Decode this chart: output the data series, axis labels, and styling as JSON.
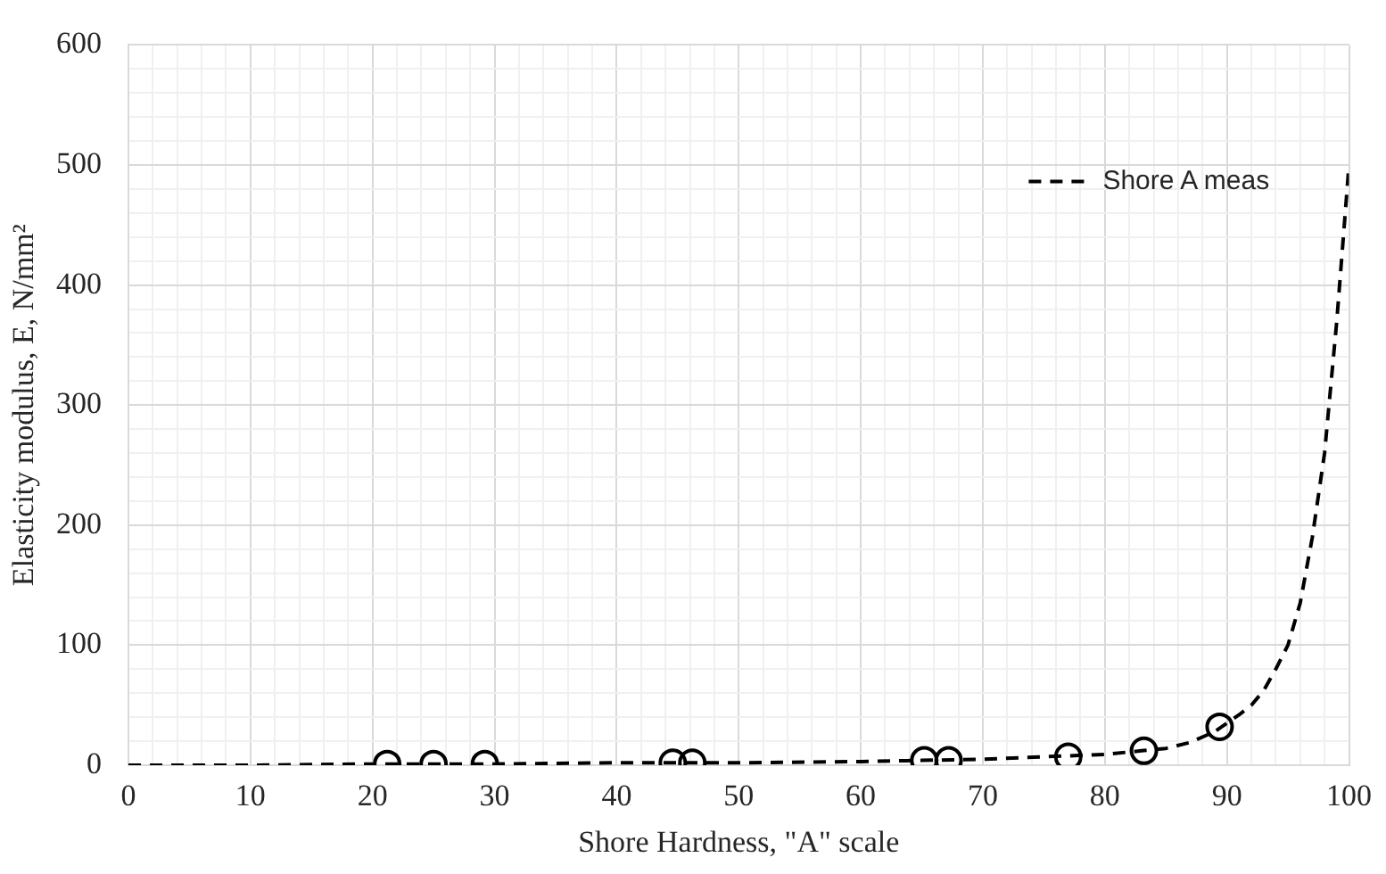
{
  "chart_data": {
    "type": "line",
    "xlabel": "Shore Hardness, \"A\" scale",
    "ylabel": "Elasticity modulus, E, N/mm²",
    "xlim": [
      0,
      100
    ],
    "xticks": [
      0,
      {
        "value": 2,
        "label": null
      },
      {
        "value": 4,
        "label": null
      },
      {
        "value": 6,
        "label": null
      },
      {
        "value": 8,
        "label": null
      },
      10,
      {
        "value": 12,
        "label": null
      },
      {
        "value": 14,
        "label": null
      },
      {
        "value": 16,
        "label": null
      },
      {
        "value": 18,
        "label": null
      },
      20,
      {
        "value": 22,
        "label": null
      },
      {
        "value": 24,
        "label": null
      },
      {
        "value": 26,
        "label": null
      },
      {
        "value": 28,
        "label": null
      },
      30,
      {
        "value": 32,
        "label": null
      },
      {
        "value": 34,
        "label": null
      },
      {
        "value": 36,
        "label": null
      },
      {
        "value": 38,
        "label": null
      },
      40,
      {
        "value": 42,
        "label": null
      },
      {
        "value": 44,
        "label": null
      },
      {
        "value": 46,
        "label": null
      },
      {
        "value": 48,
        "label": null
      },
      50,
      {
        "value": 52,
        "label": null
      },
      {
        "value": 54,
        "label": null
      },
      {
        "value": 56,
        "label": null
      },
      {
        "value": 58,
        "label": null
      },
      60,
      {
        "value": 62,
        "label": null
      },
      {
        "value": 64,
        "label": null
      },
      {
        "value": 66,
        "label": null
      },
      {
        "value": 68,
        "label": null
      },
      70,
      {
        "value": 72,
        "label": null
      },
      {
        "value": 74,
        "label": null
      },
      {
        "value": 76,
        "label": null
      },
      {
        "value": 78,
        "label": null
      },
      80,
      {
        "value": 82,
        "label": null
      },
      {
        "value": 84,
        "label": null
      },
      {
        "value": 86,
        "label": null
      },
      {
        "value": 88,
        "label": null
      },
      90,
      {
        "value": 92,
        "label": null
      },
      {
        "value": 94,
        "label": null
      },
      {
        "value": 96,
        "label": null
      },
      {
        "value": 98,
        "label": null
      },
      100
    ],
    "ylim": [
      0,
      600
    ],
    "yticks": [
      0,
      {
        "value": 20,
        "label": null
      },
      {
        "value": 40,
        "label": null
      },
      {
        "value": 60,
        "label": null
      },
      {
        "value": 80,
        "label": null
      },
      100,
      {
        "value": 120,
        "label": null
      },
      {
        "value": 140,
        "label": null
      },
      {
        "value": 160,
        "label": null
      },
      {
        "value": 180,
        "label": null
      },
      200,
      {
        "value": 220,
        "label": null
      },
      {
        "value": 240,
        "label": null
      },
      {
        "value": 260,
        "label": null
      },
      {
        "value": 280,
        "label": null
      },
      300,
      {
        "value": 320,
        "label": null
      },
      {
        "value": 340,
        "label": null
      },
      {
        "value": 360,
        "label": null
      },
      {
        "value": 380,
        "label": null
      },
      400,
      {
        "value": 420,
        "label": null
      },
      {
        "value": 440,
        "label": null
      },
      {
        "value": 460,
        "label": null
      },
      {
        "value": 480,
        "label": null
      },
      500,
      {
        "value": 520,
        "label": null
      },
      {
        "value": 540,
        "label": null
      },
      {
        "value": 560,
        "label": null
      },
      {
        "value": 580,
        "label": null
      },
      600
    ],
    "grid": true,
    "legend": "top right",
    "series": [
      {
        "name": "Shore A meas",
        "color": "#000000",
        "line_style": "dashed",
        "marker": "none",
        "x": [
          0,
          10,
          20,
          30,
          40,
          50,
          60,
          65,
          70,
          75,
          80,
          83,
          85,
          87,
          89,
          90,
          91,
          92,
          93,
          94,
          95,
          96,
          97,
          98,
          99,
          100
        ],
        "values": [
          0,
          0,
          1,
          1,
          2,
          2,
          3,
          4,
          5,
          7,
          9,
          12,
          14,
          19,
          28,
          35,
          42,
          50,
          62,
          80,
          100,
          135,
          190,
          260,
          370,
          500
        ]
      },
      {
        "type": "scatter",
        "color": "#000000",
        "marker": "circle",
        "x": [
          21.2,
          25,
          29.2,
          44.6,
          46.2,
          65.2,
          67.2,
          77,
          83.2,
          89.4
        ],
        "values": [
          1,
          1,
          1,
          2,
          2,
          4,
          4,
          7,
          12,
          32
        ]
      }
    ]
  }
}
